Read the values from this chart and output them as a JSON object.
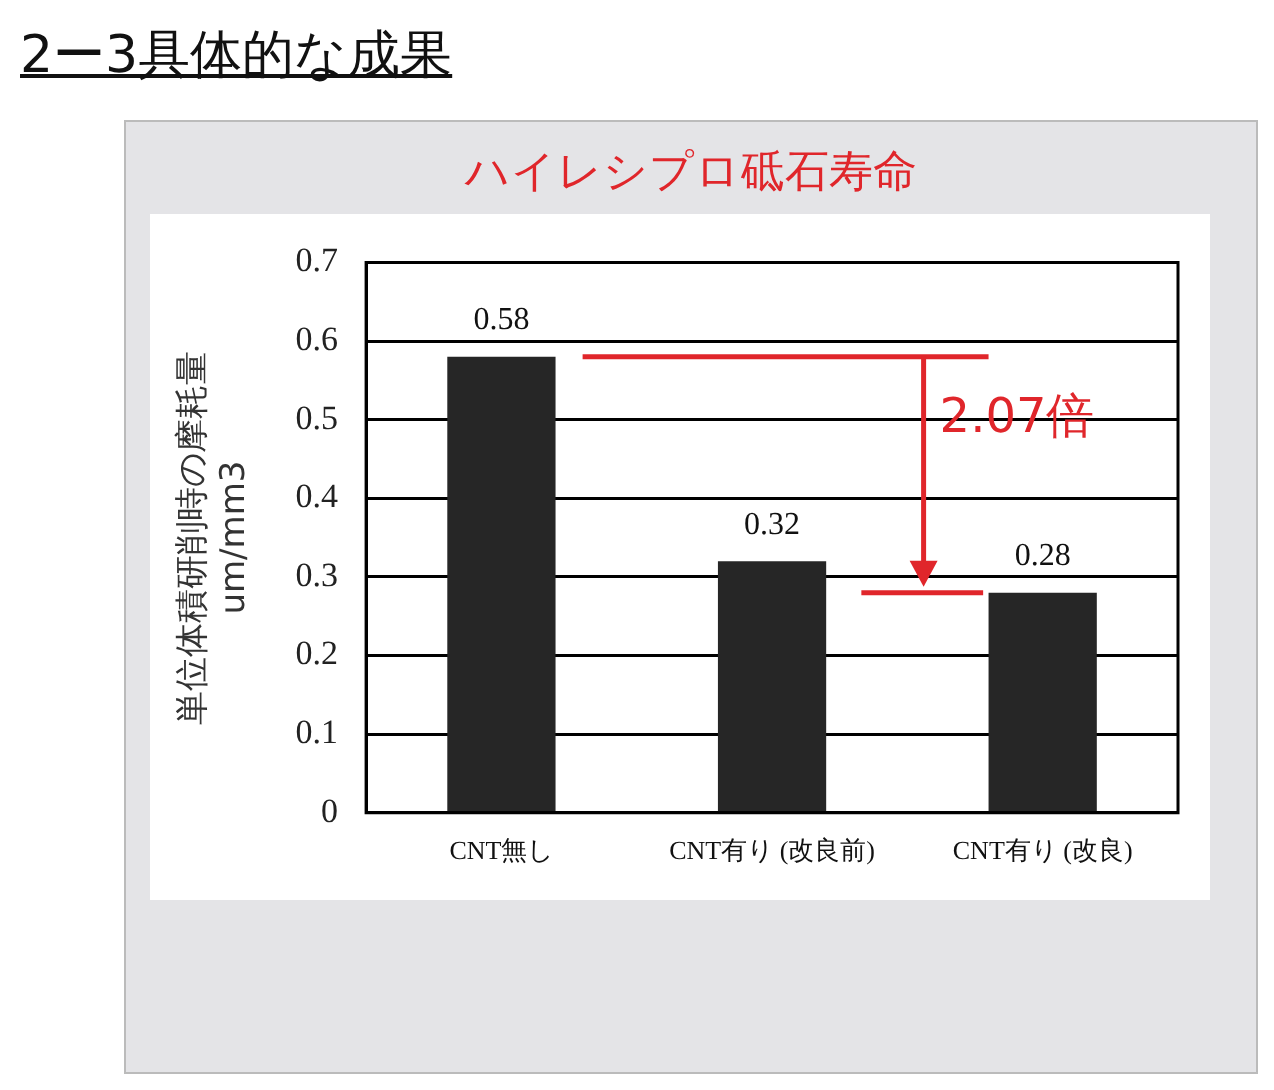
{
  "chart_data": {
    "type": "bar",
    "title": "2ー3具体的な成果",
    "subtitle": "ハイレシプロ砥石寿命",
    "ylabel": "単位体積研削時の摩耗量\num/mm3",
    "categories": [
      "CNT無し",
      "CNT有り (改良前)",
      "CNT有り (改良)"
    ],
    "values": [
      0.58,
      0.32,
      0.28
    ],
    "color": "#262626",
    "ylim": [
      0,
      0.7
    ],
    "yticks": [
      0,
      0.1,
      0.2,
      0.3,
      0.4,
      0.5,
      0.6,
      0.7
    ],
    "grid": "y",
    "data_labels": true,
    "legend": false,
    "annotations": [
      "2.07倍"
    ]
  }
}
